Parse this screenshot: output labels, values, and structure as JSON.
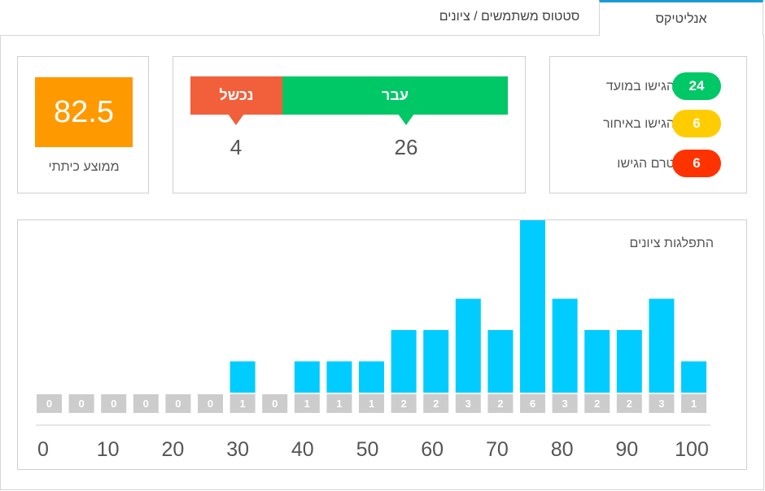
{
  "tabs": [
    {
      "label": "אנליטיקס",
      "active": true
    },
    {
      "label": "סטטוס משתמשים / ציונים",
      "active": false
    }
  ],
  "submissions": [
    {
      "label": "הגישו במועד",
      "count": "24",
      "color": "#00c866"
    },
    {
      "label": "הגישו באיחור",
      "count": "6",
      "color": "#ffcc00"
    },
    {
      "label": "טרם הגישו",
      "count": "6",
      "color": "#ff3300"
    }
  ],
  "pass_fail": {
    "pass_label": "עבר",
    "fail_label": "נכשל",
    "pass_count": "26",
    "fail_count": "4",
    "pass_color": "#00c866",
    "fail_color": "#f15f3b"
  },
  "average": {
    "value": "82.5",
    "label": "ממוצע כיתתי",
    "color": "#ff9900"
  },
  "chart_data": {
    "type": "bar",
    "title": "התפלגות ציונים",
    "values": [
      0,
      0,
      0,
      0,
      0,
      0,
      1,
      0,
      1,
      1,
      1,
      2,
      2,
      3,
      2,
      6,
      3,
      2,
      2,
      3,
      1
    ],
    "x_ticks": [
      "0",
      "10",
      "20",
      "30",
      "40",
      "50",
      "60",
      "70",
      "80",
      "90",
      "100"
    ],
    "xlim": [
      0,
      100
    ],
    "ylim": [
      0,
      6
    ],
    "bar_color": "#00ccff",
    "label_box_color": "#cccccc",
    "grid": false
  }
}
